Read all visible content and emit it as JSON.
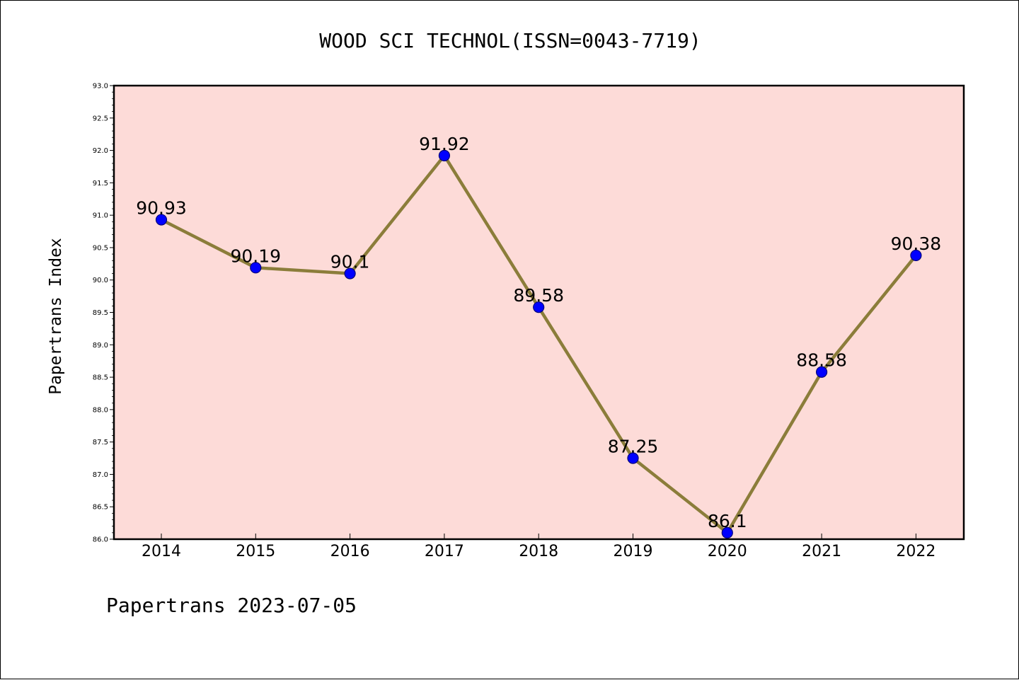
{
  "chart_data": {
    "type": "line",
    "title": "WOOD SCI TECHNOL(ISSN=0043-7719)",
    "ylabel": "Papertrans Index",
    "xlabel": "",
    "categories": [
      "2014",
      "2015",
      "2016",
      "2017",
      "2018",
      "2019",
      "2020",
      "2021",
      "2022"
    ],
    "series": [
      {
        "values": [
          90.93,
          90.19,
          90.1,
          91.92,
          89.58,
          87.25,
          86.1,
          88.58,
          90.38
        ]
      }
    ],
    "data_labels": [
      "90.93",
      "90.19",
      "90.1",
      "91.92",
      "89.58",
      "87.25",
      "86.1",
      "88.58",
      "90.38"
    ],
    "ylim": [
      86.0,
      93.0
    ],
    "y_ticks": [
      "86.0",
      "86.5",
      "87.0",
      "87.5",
      "88.0",
      "88.5",
      "89.0",
      "89.5",
      "90.0",
      "90.5",
      "91.0",
      "91.5",
      "92.0",
      "92.5",
      "93.0"
    ],
    "grid": false,
    "legend": "none",
    "footer": "Papertrans 2023-07-05",
    "colors": {
      "plot_background": "#fddbd8",
      "line": "#8b7d3a",
      "marker": "#0000ff",
      "axis": "#000000"
    }
  }
}
